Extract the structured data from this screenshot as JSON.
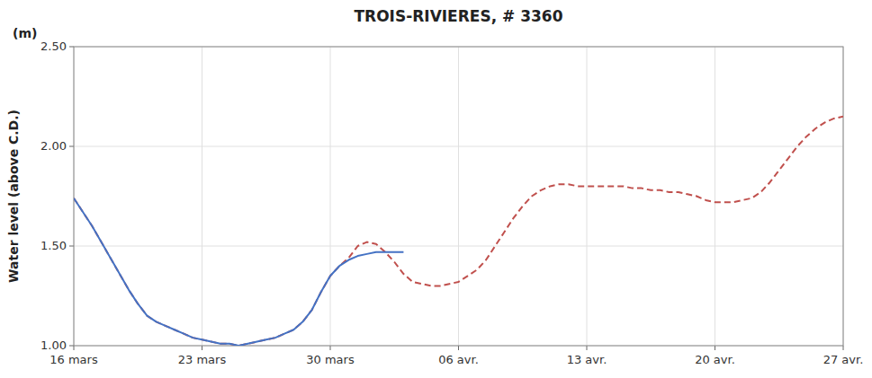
{
  "chart_data": {
    "type": "line",
    "title": "TROIS-RIVIERES, # 3360",
    "y_label": "Water level (above C.D.)",
    "annotations": [
      "(m)"
    ],
    "xlim": [
      0,
      42
    ],
    "xticks": [
      {
        "value": 0,
        "label": "16 mars"
      },
      {
        "value": 7,
        "label": "23 mars"
      },
      {
        "value": 14,
        "label": "30 mars"
      },
      {
        "value": 21,
        "label": "06 avr."
      },
      {
        "value": 28,
        "label": "13 avr."
      },
      {
        "value": 35,
        "label": "20 avr."
      },
      {
        "value": 42,
        "label": "27 avr."
      }
    ],
    "ylim": [
      1.0,
      2.5
    ],
    "yticks": [
      {
        "value": 1.0,
        "label": "1.00"
      },
      {
        "value": 1.5,
        "label": "1.50"
      },
      {
        "value": 2.0,
        "label": "2.00"
      },
      {
        "value": 2.5,
        "label": "2.50"
      }
    ],
    "grid": true,
    "series": [
      {
        "color": "#4472C4",
        "line_style": "solid",
        "x": [
          0,
          0.5,
          1,
          1.5,
          2,
          2.5,
          3,
          3.5,
          4,
          4.5,
          5,
          5.5,
          6,
          6.5,
          7,
          7.5,
          8,
          8.5,
          9,
          9.5,
          10,
          10.5,
          11,
          11.5,
          12,
          12.5,
          13,
          13.5,
          14,
          14.5,
          15,
          15.5,
          16,
          16.5,
          17,
          17.5,
          18
        ],
        "values": [
          1.74,
          1.67,
          1.6,
          1.52,
          1.44,
          1.36,
          1.28,
          1.21,
          1.15,
          1.12,
          1.1,
          1.08,
          1.06,
          1.04,
          1.03,
          1.02,
          1.01,
          1.01,
          1.0,
          1.01,
          1.02,
          1.03,
          1.04,
          1.06,
          1.08,
          1.12,
          1.18,
          1.27,
          1.35,
          1.4,
          1.43,
          1.45,
          1.46,
          1.47,
          1.47,
          1.47,
          1.47
        ]
      },
      {
        "color": "#C0504D",
        "line_style": "dashed",
        "x": [
          0,
          0.5,
          1,
          1.5,
          2,
          2.5,
          3,
          3.5,
          4,
          4.5,
          5,
          5.5,
          6,
          6.5,
          7,
          7.5,
          8,
          8.5,
          9,
          9.5,
          10,
          10.5,
          11,
          11.5,
          12,
          12.5,
          13,
          13.5,
          14,
          14.5,
          15,
          15.5,
          16,
          16.5,
          17,
          17.5,
          18,
          18.5,
          19,
          19.5,
          20,
          20.5,
          21,
          21.5,
          22,
          22.5,
          23,
          23.5,
          24,
          24.5,
          25,
          25.5,
          26,
          26.5,
          27,
          27.5,
          28,
          28.5,
          29,
          29.5,
          30,
          30.5,
          31,
          31.5,
          32,
          32.5,
          33,
          33.5,
          34,
          34.5,
          35,
          35.5,
          36,
          36.5,
          37,
          37.5,
          38,
          38.5,
          39,
          39.5,
          40,
          40.5,
          41,
          41.5,
          42
        ],
        "values": [
          1.74,
          1.67,
          1.6,
          1.52,
          1.44,
          1.36,
          1.28,
          1.21,
          1.15,
          1.12,
          1.1,
          1.08,
          1.06,
          1.04,
          1.03,
          1.02,
          1.01,
          1.01,
          1.0,
          1.01,
          1.02,
          1.03,
          1.04,
          1.06,
          1.08,
          1.12,
          1.18,
          1.27,
          1.35,
          1.4,
          1.44,
          1.5,
          1.52,
          1.51,
          1.47,
          1.42,
          1.36,
          1.32,
          1.31,
          1.3,
          1.3,
          1.31,
          1.32,
          1.35,
          1.38,
          1.43,
          1.5,
          1.57,
          1.64,
          1.7,
          1.75,
          1.78,
          1.8,
          1.81,
          1.81,
          1.8,
          1.8,
          1.8,
          1.8,
          1.8,
          1.8,
          1.79,
          1.79,
          1.78,
          1.78,
          1.77,
          1.77,
          1.76,
          1.75,
          1.73,
          1.72,
          1.72,
          1.72,
          1.73,
          1.74,
          1.77,
          1.82,
          1.88,
          1.94,
          2.0,
          2.05,
          2.09,
          2.12,
          2.14,
          2.15
        ]
      }
    ]
  }
}
